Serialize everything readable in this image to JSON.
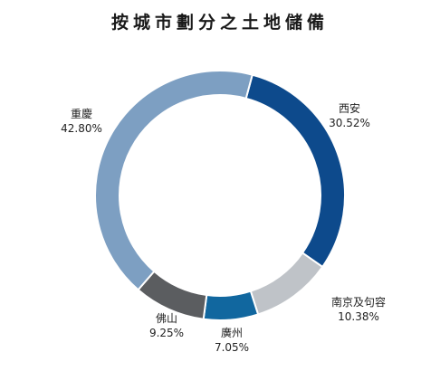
{
  "chart_data": {
    "type": "pie",
    "title": "按城市劃分之土地儲備",
    "slices": [
      {
        "label": "西安",
        "value_text": "30.52%",
        "value": 30.52,
        "color": "#0d4a8c"
      },
      {
        "label": "南京及句容",
        "value_text": "10.38%",
        "value": 10.38,
        "color": "#bfc3c8"
      },
      {
        "label": "廣州",
        "value_text": "7.05%",
        "value": 7.05,
        "color": "#11679f"
      },
      {
        "label": "佛山",
        "value_text": "9.25%",
        "value": 9.25,
        "color": "#5b5d60"
      },
      {
        "label": "重慶",
        "value_text": "42.80%",
        "value": 42.8,
        "color": "#7d9fc2"
      }
    ],
    "donut": true,
    "start_angle_deg": 15
  }
}
